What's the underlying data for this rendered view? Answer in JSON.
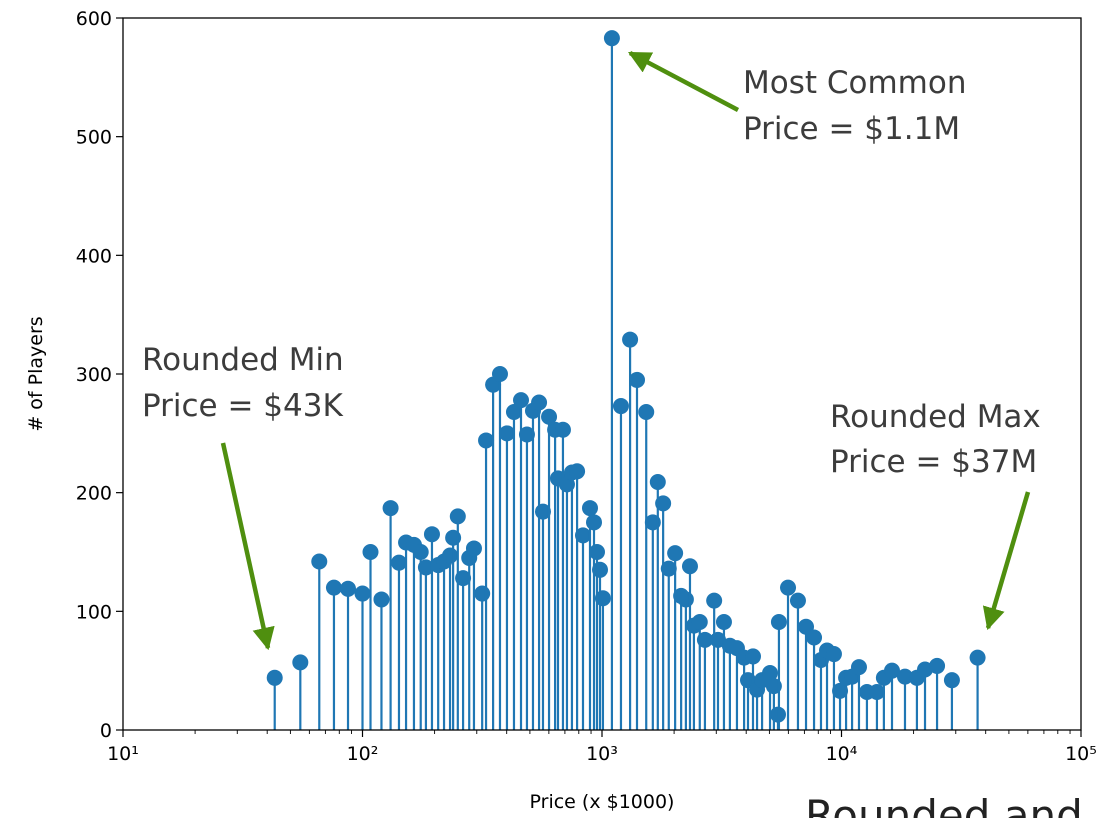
{
  "chart_data": {
    "type": "stem",
    "xlabel": "Price (x $1000)",
    "ylabel": "# of Players",
    "xscale": "log",
    "color": "#1f77b4",
    "xlim": [
      10,
      100000
    ],
    "xticks": [
      {
        "value": 10,
        "label": "10¹"
      },
      {
        "value": 100,
        "label": "10²"
      },
      {
        "value": 1000,
        "label": "10³"
      },
      {
        "value": 10000,
        "label": "10⁴"
      },
      {
        "value": 100000,
        "label": "10⁵"
      }
    ],
    "ylim": [
      0,
      600
    ],
    "yticks": [
      0,
      100,
      200,
      300,
      400,
      500,
      600
    ],
    "x": [
      43,
      55,
      66,
      76,
      87,
      100,
      108,
      120,
      131,
      142,
      152,
      164,
      175,
      184,
      195,
      207,
      219,
      232,
      239,
      250,
      263,
      279,
      292,
      316,
      328,
      351,
      375,
      401,
      429,
      459,
      486,
      515,
      546,
      567,
      601,
      637,
      655,
      687,
      714,
      749,
      787,
      833,
      891,
      926,
      953,
      981,
      1009,
      1100,
      1200,
      1310,
      1400,
      1530,
      1630,
      1710,
      1800,
      1900,
      2020,
      2140,
      2240,
      2330,
      2420,
      2560,
      2690,
      2940,
      3050,
      3230,
      3420,
      3660,
      3920,
      4070,
      4270,
      4440,
      4660,
      5030,
      5220,
      5430,
      5480,
      5980,
      6580,
      7110,
      7680,
      8210,
      8700,
      9300,
      9860,
      10450,
      11070,
      11830,
      12770,
      14060,
      15030,
      16250,
      18410,
      20650,
      22320,
      25060,
      28910,
      37000
    ],
    "values": [
      44,
      57,
      142,
      120,
      119,
      115,
      150,
      110,
      187,
      141,
      158,
      156,
      150,
      137,
      165,
      139,
      142,
      147,
      162,
      180,
      128,
      145,
      153,
      115,
      244,
      291,
      300,
      250,
      268,
      278,
      249,
      269,
      276,
      184,
      264,
      253,
      212,
      253,
      207,
      217,
      218,
      164,
      187,
      175,
      150,
      135,
      111,
      583,
      273,
      329,
      295,
      268,
      175,
      209,
      191,
      136,
      149,
      113,
      110,
      138,
      88,
      91,
      76,
      109,
      76,
      91,
      71,
      69,
      61,
      42,
      62,
      34,
      42,
      48,
      37,
      13,
      91,
      120,
      109,
      87,
      78,
      59,
      67,
      64,
      33,
      44,
      45,
      53,
      32,
      32,
      44,
      50,
      45,
      44,
      51,
      54,
      42,
      61
    ],
    "annotations": [
      {
        "lines": [
          "Most Common",
          "Price = $1.1M"
        ]
      },
      {
        "lines": [
          "Rounded Min",
          "Price = $43K"
        ]
      },
      {
        "lines": [
          "Rounded Max",
          "Price = $37M"
        ]
      }
    ],
    "footer_text": "Rounded and"
  }
}
